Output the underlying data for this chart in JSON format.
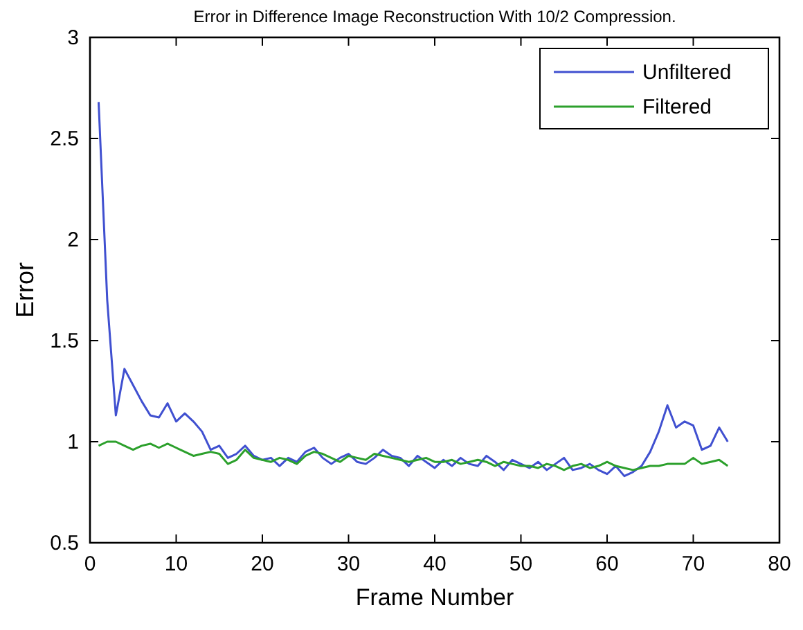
{
  "chart_data": {
    "type": "line",
    "title": "Error in Difference Image Reconstruction With 10/2 Compression.",
    "xlabel": "Frame Number",
    "ylabel": "Error",
    "x": [
      1,
      2,
      3,
      4,
      5,
      6,
      7,
      8,
      9,
      10,
      11,
      12,
      13,
      14,
      15,
      16,
      17,
      18,
      19,
      20,
      21,
      22,
      23,
      24,
      25,
      26,
      27,
      28,
      29,
      30,
      31,
      32,
      33,
      34,
      35,
      36,
      37,
      38,
      39,
      40,
      41,
      42,
      43,
      44,
      45,
      46,
      47,
      48,
      49,
      50,
      51,
      52,
      53,
      54,
      55,
      56,
      57,
      58,
      59,
      60,
      61,
      62,
      63,
      64,
      65,
      66,
      67,
      68,
      69,
      70,
      71,
      72,
      73,
      74
    ],
    "series": [
      {
        "name": "Unfiltered",
        "color": "#4050d0",
        "values": [
          2.68,
          1.7,
          1.13,
          1.36,
          1.28,
          1.2,
          1.13,
          1.12,
          1.19,
          1.1,
          1.14,
          1.1,
          1.05,
          0.96,
          0.98,
          0.92,
          0.94,
          0.98,
          0.93,
          0.91,
          0.92,
          0.88,
          0.92,
          0.9,
          0.95,
          0.97,
          0.92,
          0.89,
          0.92,
          0.94,
          0.9,
          0.89,
          0.92,
          0.96,
          0.93,
          0.92,
          0.88,
          0.93,
          0.9,
          0.87,
          0.91,
          0.88,
          0.92,
          0.89,
          0.88,
          0.93,
          0.9,
          0.86,
          0.91,
          0.89,
          0.87,
          0.9,
          0.86,
          0.89,
          0.92,
          0.86,
          0.87,
          0.89,
          0.86,
          0.84,
          0.88,
          0.83,
          0.85,
          0.88,
          0.95,
          1.05,
          1.18,
          1.07,
          1.1,
          1.08,
          0.96,
          0.98,
          1.07,
          1.0
        ]
      },
      {
        "name": "Filtered",
        "color": "#2ca02c",
        "values": [
          0.98,
          1.0,
          1.0,
          0.98,
          0.96,
          0.98,
          0.99,
          0.97,
          0.99,
          0.97,
          0.95,
          0.93,
          0.94,
          0.95,
          0.94,
          0.89,
          0.91,
          0.96,
          0.92,
          0.91,
          0.9,
          0.92,
          0.91,
          0.89,
          0.93,
          0.95,
          0.94,
          0.92,
          0.9,
          0.93,
          0.92,
          0.91,
          0.94,
          0.93,
          0.92,
          0.91,
          0.9,
          0.91,
          0.92,
          0.9,
          0.9,
          0.91,
          0.89,
          0.9,
          0.91,
          0.9,
          0.88,
          0.9,
          0.89,
          0.88,
          0.88,
          0.87,
          0.89,
          0.88,
          0.86,
          0.88,
          0.89,
          0.87,
          0.88,
          0.9,
          0.88,
          0.87,
          0.86,
          0.87,
          0.88,
          0.88,
          0.89,
          0.89,
          0.89,
          0.92,
          0.89,
          0.9,
          0.91,
          0.88
        ]
      }
    ],
    "xlim": [
      0,
      80
    ],
    "xticks": [
      0,
      10,
      20,
      30,
      40,
      50,
      60,
      70,
      80
    ],
    "ylim": [
      0.5,
      3
    ],
    "yticks": [
      0.5,
      1,
      1.5,
      2,
      2.5,
      3
    ],
    "legend": "top right",
    "grid": false,
    "line_style": "solid",
    "marker": "none"
  }
}
